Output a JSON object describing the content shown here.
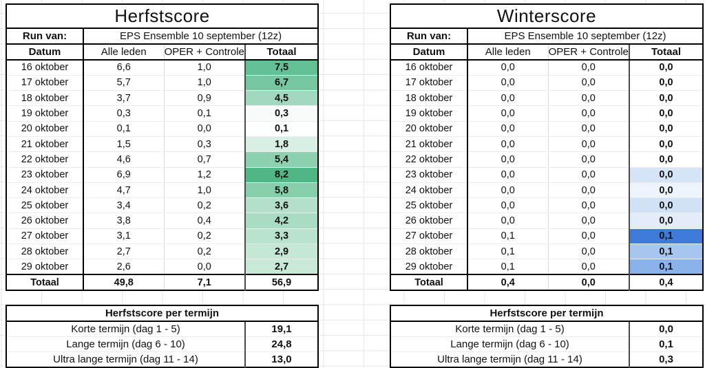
{
  "herfst": {
    "title": "Herfstscore",
    "run_label": "Run van:",
    "run_value": "EPS Ensemble 10 september (12z)",
    "columns": {
      "datum": "Datum",
      "alle_leden": "Alle leden",
      "oper_controle": "OPER + Controle",
      "totaal": "Totaal"
    },
    "rows": [
      {
        "datum": "16 oktober",
        "alle_leden": "6,6",
        "oper_controle": "1,0",
        "totaal": "7,5",
        "totaal_bg": "#62c094"
      },
      {
        "datum": "17 oktober",
        "alle_leden": "5,7",
        "oper_controle": "1,0",
        "totaal": "6,7",
        "totaal_bg": "#74c79f"
      },
      {
        "datum": "18 oktober",
        "alle_leden": "3,7",
        "oper_controle": "0,9",
        "totaal": "4,5",
        "totaal_bg": "#a2d8bf"
      },
      {
        "datum": "19 oktober",
        "alle_leden": "0,3",
        "oper_controle": "0,1",
        "totaal": "0,3",
        "totaal_bg": "#f7fcfa"
      },
      {
        "datum": "20 oktober",
        "alle_leden": "0,1",
        "oper_controle": "0,0",
        "totaal": "0,1",
        "totaal_bg": "#fdfefe"
      },
      {
        "datum": "21 oktober",
        "alle_leden": "1,5",
        "oper_controle": "0,3",
        "totaal": "1,8",
        "totaal_bg": "#d9efe5"
      },
      {
        "datum": "22 oktober",
        "alle_leden": "4,6",
        "oper_controle": "0,7",
        "totaal": "5,4",
        "totaal_bg": "#8dd1b0"
      },
      {
        "datum": "23 oktober",
        "alle_leden": "6,9",
        "oper_controle": "1,2",
        "totaal": "8,2",
        "totaal_bg": "#50b684"
      },
      {
        "datum": "24 oktober",
        "alle_leden": "4,7",
        "oper_controle": "1,0",
        "totaal": "5,8",
        "totaal_bg": "#86cfab"
      },
      {
        "datum": "25 oktober",
        "alle_leden": "3,4",
        "oper_controle": "0,2",
        "totaal": "3,6",
        "totaal_bg": "#b4e0cb"
      },
      {
        "datum": "26 oktober",
        "alle_leden": "3,8",
        "oper_controle": "0,4",
        "totaal": "4,2",
        "totaal_bg": "#a8dcc3"
      },
      {
        "datum": "27 oktober",
        "alle_leden": "3,1",
        "oper_controle": "0,2",
        "totaal": "3,3",
        "totaal_bg": "#bae3cf"
      },
      {
        "datum": "28 oktober",
        "alle_leden": "2,7",
        "oper_controle": "0,2",
        "totaal": "2,9",
        "totaal_bg": "#c4e7d6"
      },
      {
        "datum": "29 oktober",
        "alle_leden": "2,6",
        "oper_controle": "0,0",
        "totaal": "2,7",
        "totaal_bg": "#c8e9d8"
      }
    ],
    "total": {
      "label": "Totaal",
      "alle_leden": "49,8",
      "oper_controle": "7,1",
      "totaal": "56,9"
    }
  },
  "winter": {
    "title": "Winterscore",
    "run_label": "Run van:",
    "run_value": "EPS Ensemble 10 september (12z)",
    "columns": {
      "datum": "Datum",
      "alle_leden": "Alle leden",
      "oper_controle": "OPER + Controle",
      "totaal": "Totaal"
    },
    "rows": [
      {
        "datum": "16 oktober",
        "alle_leden": "0,0",
        "oper_controle": "0,0",
        "totaal": "0,0",
        "totaal_bg": "#ffffff"
      },
      {
        "datum": "17 oktober",
        "alle_leden": "0,0",
        "oper_controle": "0,0",
        "totaal": "0,0",
        "totaal_bg": "#ffffff"
      },
      {
        "datum": "18 oktober",
        "alle_leden": "0,0",
        "oper_controle": "0,0",
        "totaal": "0,0",
        "totaal_bg": "#ffffff"
      },
      {
        "datum": "19 oktober",
        "alle_leden": "0,0",
        "oper_controle": "0,0",
        "totaal": "0,0",
        "totaal_bg": "#ffffff"
      },
      {
        "datum": "20 oktober",
        "alle_leden": "0,0",
        "oper_controle": "0,0",
        "totaal": "0,0",
        "totaal_bg": "#ffffff"
      },
      {
        "datum": "21 oktober",
        "alle_leden": "0,0",
        "oper_controle": "0,0",
        "totaal": "0,0",
        "totaal_bg": "#ffffff"
      },
      {
        "datum": "22 oktober",
        "alle_leden": "0,0",
        "oper_controle": "0,0",
        "totaal": "0,0",
        "totaal_bg": "#ffffff"
      },
      {
        "datum": "23 oktober",
        "alle_leden": "0,0",
        "oper_controle": "0,0",
        "totaal": "0,0",
        "totaal_bg": "#d6e4f8"
      },
      {
        "datum": "24 oktober",
        "alle_leden": "0,0",
        "oper_controle": "0,0",
        "totaal": "0,0",
        "totaal_bg": "#eef4fc"
      },
      {
        "datum": "25 oktober",
        "alle_leden": "0,0",
        "oper_controle": "0,0",
        "totaal": "0,0",
        "totaal_bg": "#d1e1f6"
      },
      {
        "datum": "26 oktober",
        "alle_leden": "0,0",
        "oper_controle": "0,0",
        "totaal": "0,0",
        "totaal_bg": "#e3edfa"
      },
      {
        "datum": "27 oktober",
        "alle_leden": "0,1",
        "oper_controle": "0,0",
        "totaal": "0,1",
        "totaal_bg": "#3d7ad9"
      },
      {
        "datum": "28 oktober",
        "alle_leden": "0,1",
        "oper_controle": "0,0",
        "totaal": "0,1",
        "totaal_bg": "#a7c5ef"
      },
      {
        "datum": "29 oktober",
        "alle_leden": "0,1",
        "oper_controle": "0,0",
        "totaal": "0,1",
        "totaal_bg": "#8ab2ea"
      }
    ],
    "total": {
      "label": "Totaal",
      "alle_leden": "0,4",
      "oper_controle": "0,0",
      "totaal": "0,4"
    }
  },
  "herfst_summary": {
    "title": "Herfstscore per termijn",
    "rows": [
      {
        "label": "Korte termijn (dag 1 - 5)",
        "value": "19,1"
      },
      {
        "label": "Lange termijn (dag 6 - 10)",
        "value": "24,8"
      },
      {
        "label": "Ultra lange termijn (dag 11 - 14)",
        "value": "13,0"
      }
    ]
  },
  "winter_summary": {
    "title": "Herfstscore per termijn",
    "rows": [
      {
        "label": "Korte termijn (dag 1 - 5)",
        "value": "0,0"
      },
      {
        "label": "Lange termijn (dag 6 - 10)",
        "value": "0,1"
      },
      {
        "label": "Ultra lange termijn (dag 11 - 14)",
        "value": "0,3"
      }
    ]
  },
  "colors": {
    "green_scale_max": "#50b684",
    "blue_scale_max": "#3d7ad9",
    "gridline": "#e4e7ea",
    "table_border": "#000000"
  }
}
